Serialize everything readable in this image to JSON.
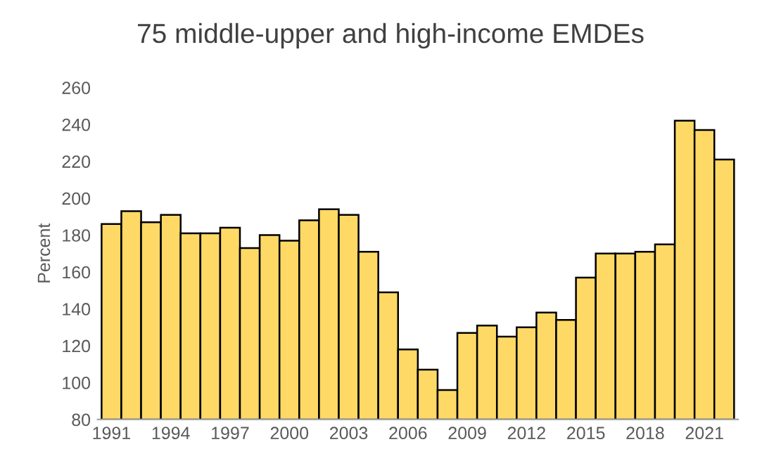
{
  "chart_data": {
    "type": "bar",
    "title": "75 middle-upper and high-income EMDEs",
    "ylabel": "Percent",
    "categories": [
      "1991",
      null,
      null,
      "1994",
      null,
      null,
      "1997",
      null,
      null,
      "2000",
      null,
      null,
      "2003",
      null,
      null,
      "2006",
      null,
      null,
      "2009",
      null,
      null,
      "2012",
      null,
      null,
      "2015",
      null,
      null,
      "2018",
      null,
      null,
      "2021",
      null
    ],
    "values": [
      186,
      193,
      187,
      191,
      181,
      181,
      184,
      173,
      180,
      177,
      188,
      194,
      191,
      171,
      149,
      118,
      107,
      96,
      127,
      131,
      125,
      130,
      138,
      134,
      157,
      170,
      170,
      171,
      175,
      242,
      237,
      221
    ],
    "color": "#ffd966",
    "ylim": [
      80,
      260
    ],
    "yticks": [
      80,
      100,
      120,
      140,
      160,
      180,
      200,
      220,
      240,
      260
    ],
    "grid": false
  }
}
